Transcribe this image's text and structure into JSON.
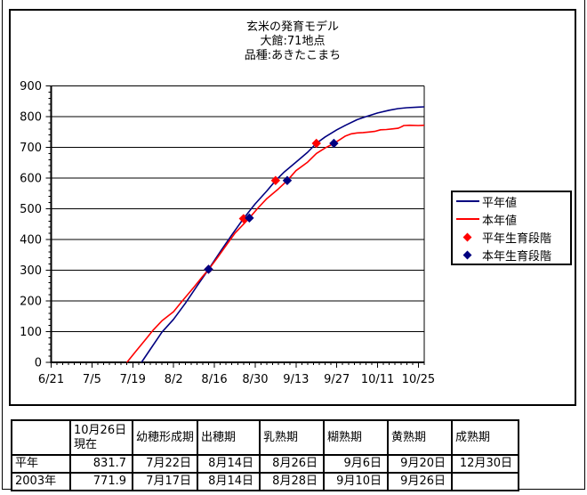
{
  "chart": {
    "title_lines": [
      "玄米の発育モデル",
      "大館:71地点",
      "品種:あきたこまち"
    ]
  },
  "chart_data": {
    "type": "line",
    "title": "玄米の発育モデル 大館:71地点 品種:あきたこまち",
    "xlabel": "",
    "ylabel": "",
    "x_unit": "days_after_6/21",
    "x_axis": {
      "tick_labels": [
        "6/21",
        "7/5",
        "7/19",
        "8/2",
        "8/16",
        "8/30",
        "9/13",
        "9/27",
        "10/11",
        "10/25"
      ],
      "tick_days": [
        0,
        14,
        28,
        42,
        56,
        70,
        84,
        98,
        112,
        126
      ],
      "minor_step_days": 2,
      "day_range": [
        0,
        128
      ]
    },
    "y_axis": {
      "min": 0,
      "max": 900,
      "major_step": 100,
      "minor_step": 20,
      "tick_labels": [
        "0",
        "100",
        "200",
        "300",
        "400",
        "500",
        "600",
        "700",
        "800",
        "900"
      ]
    },
    "grid": "horizontal-only",
    "legend_position": "right",
    "series": [
      {
        "name": "平年値",
        "color": "#000080",
        "points": [
          [
            31,
            0
          ],
          [
            34,
            42
          ],
          [
            38,
            98
          ],
          [
            42,
            140
          ],
          [
            46,
            192
          ],
          [
            50,
            248
          ],
          [
            54,
            303
          ],
          [
            58,
            360
          ],
          [
            62,
            415
          ],
          [
            66,
            468
          ],
          [
            70,
            516
          ],
          [
            74,
            558
          ],
          [
            77,
            592
          ],
          [
            80,
            620
          ],
          [
            84,
            652
          ],
          [
            88,
            684
          ],
          [
            91,
            713
          ],
          [
            94,
            734
          ],
          [
            98,
            757
          ],
          [
            101,
            772
          ],
          [
            105,
            790
          ],
          [
            108,
            800
          ],
          [
            112,
            812
          ],
          [
            116,
            821
          ],
          [
            119,
            826
          ],
          [
            122,
            829
          ],
          [
            126,
            831
          ],
          [
            128,
            832
          ]
        ]
      },
      {
        "name": "本年値",
        "color": "#FF0000",
        "points": [
          [
            26,
            0
          ],
          [
            29,
            35
          ],
          [
            32,
            70
          ],
          [
            35,
            105
          ],
          [
            38,
            135
          ],
          [
            42,
            165
          ],
          [
            45,
            200
          ],
          [
            49,
            245
          ],
          [
            52,
            280
          ],
          [
            54,
            302
          ],
          [
            57,
            340
          ],
          [
            60,
            380
          ],
          [
            63,
            420
          ],
          [
            66,
            450
          ],
          [
            68,
            470
          ],
          [
            71,
            503
          ],
          [
            74,
            533
          ],
          [
            78,
            565
          ],
          [
            81,
            592
          ],
          [
            84,
            624
          ],
          [
            88,
            652
          ],
          [
            91,
            680
          ],
          [
            94,
            698
          ],
          [
            97,
            713
          ],
          [
            99,
            725
          ],
          [
            101,
            737
          ],
          [
            103,
            744
          ],
          [
            105,
            747
          ],
          [
            107,
            748
          ],
          [
            109,
            750
          ],
          [
            111,
            752
          ],
          [
            113,
            757
          ],
          [
            115,
            758
          ],
          [
            117,
            760
          ],
          [
            119,
            762
          ],
          [
            120,
            766
          ],
          [
            121,
            771
          ],
          [
            123,
            772
          ],
          [
            126,
            771
          ],
          [
            128,
            772
          ]
        ]
      }
    ],
    "markers": [
      {
        "name": "平年生育段階",
        "color": "#FF0000",
        "shape": "diamond",
        "points": [
          {
            "date": "8/14",
            "day": 54,
            "value": 303
          },
          {
            "date": "8/26",
            "day": 66,
            "value": 468
          },
          {
            "date": "9/6",
            "day": 77,
            "value": 592
          },
          {
            "date": "9/20",
            "day": 91,
            "value": 713
          }
        ]
      },
      {
        "name": "本年生育段階",
        "color": "#000080",
        "shape": "diamond",
        "points": [
          {
            "date": "8/14",
            "day": 54,
            "value": 303
          },
          {
            "date": "8/28",
            "day": 68,
            "value": 470
          },
          {
            "date": "9/10",
            "day": 81,
            "value": 592
          },
          {
            "date": "9/26",
            "day": 97,
            "value": 713
          }
        ]
      }
    ]
  },
  "legend": {
    "items": [
      {
        "label": "平年値",
        "swatch": "line",
        "color": "#000080"
      },
      {
        "label": "本年値",
        "swatch": "line",
        "color": "#FF0000"
      },
      {
        "label": "平年生育段階",
        "swatch": "diamond",
        "color": "#FF0000"
      },
      {
        "label": "本年生育段階",
        "swatch": "diamond",
        "color": "#000080"
      }
    ]
  },
  "table": {
    "headers": [
      "",
      "10月26日現在",
      "幼穂形成期",
      "出穂期",
      "乳熟期",
      "糊熟期",
      "黄熟期",
      "成熟期"
    ],
    "rows": [
      {
        "label": "平年",
        "cells": [
          "831.7",
          "7月22日",
          "8月14日",
          "8月26日",
          "9月6日",
          "9月20日",
          "12月30日"
        ]
      },
      {
        "label": "2003年",
        "cells": [
          "771.9",
          "7月17日",
          "8月14日",
          "8月28日",
          "9月10日",
          "9月26日",
          ""
        ]
      }
    ]
  },
  "colors": {
    "average_year_line": "#000080",
    "current_year_line": "#FF0000",
    "average_stage_marker": "#FF0000",
    "current_stage_marker": "#000080",
    "axis": "#000000",
    "background": "#FFFFFF"
  }
}
